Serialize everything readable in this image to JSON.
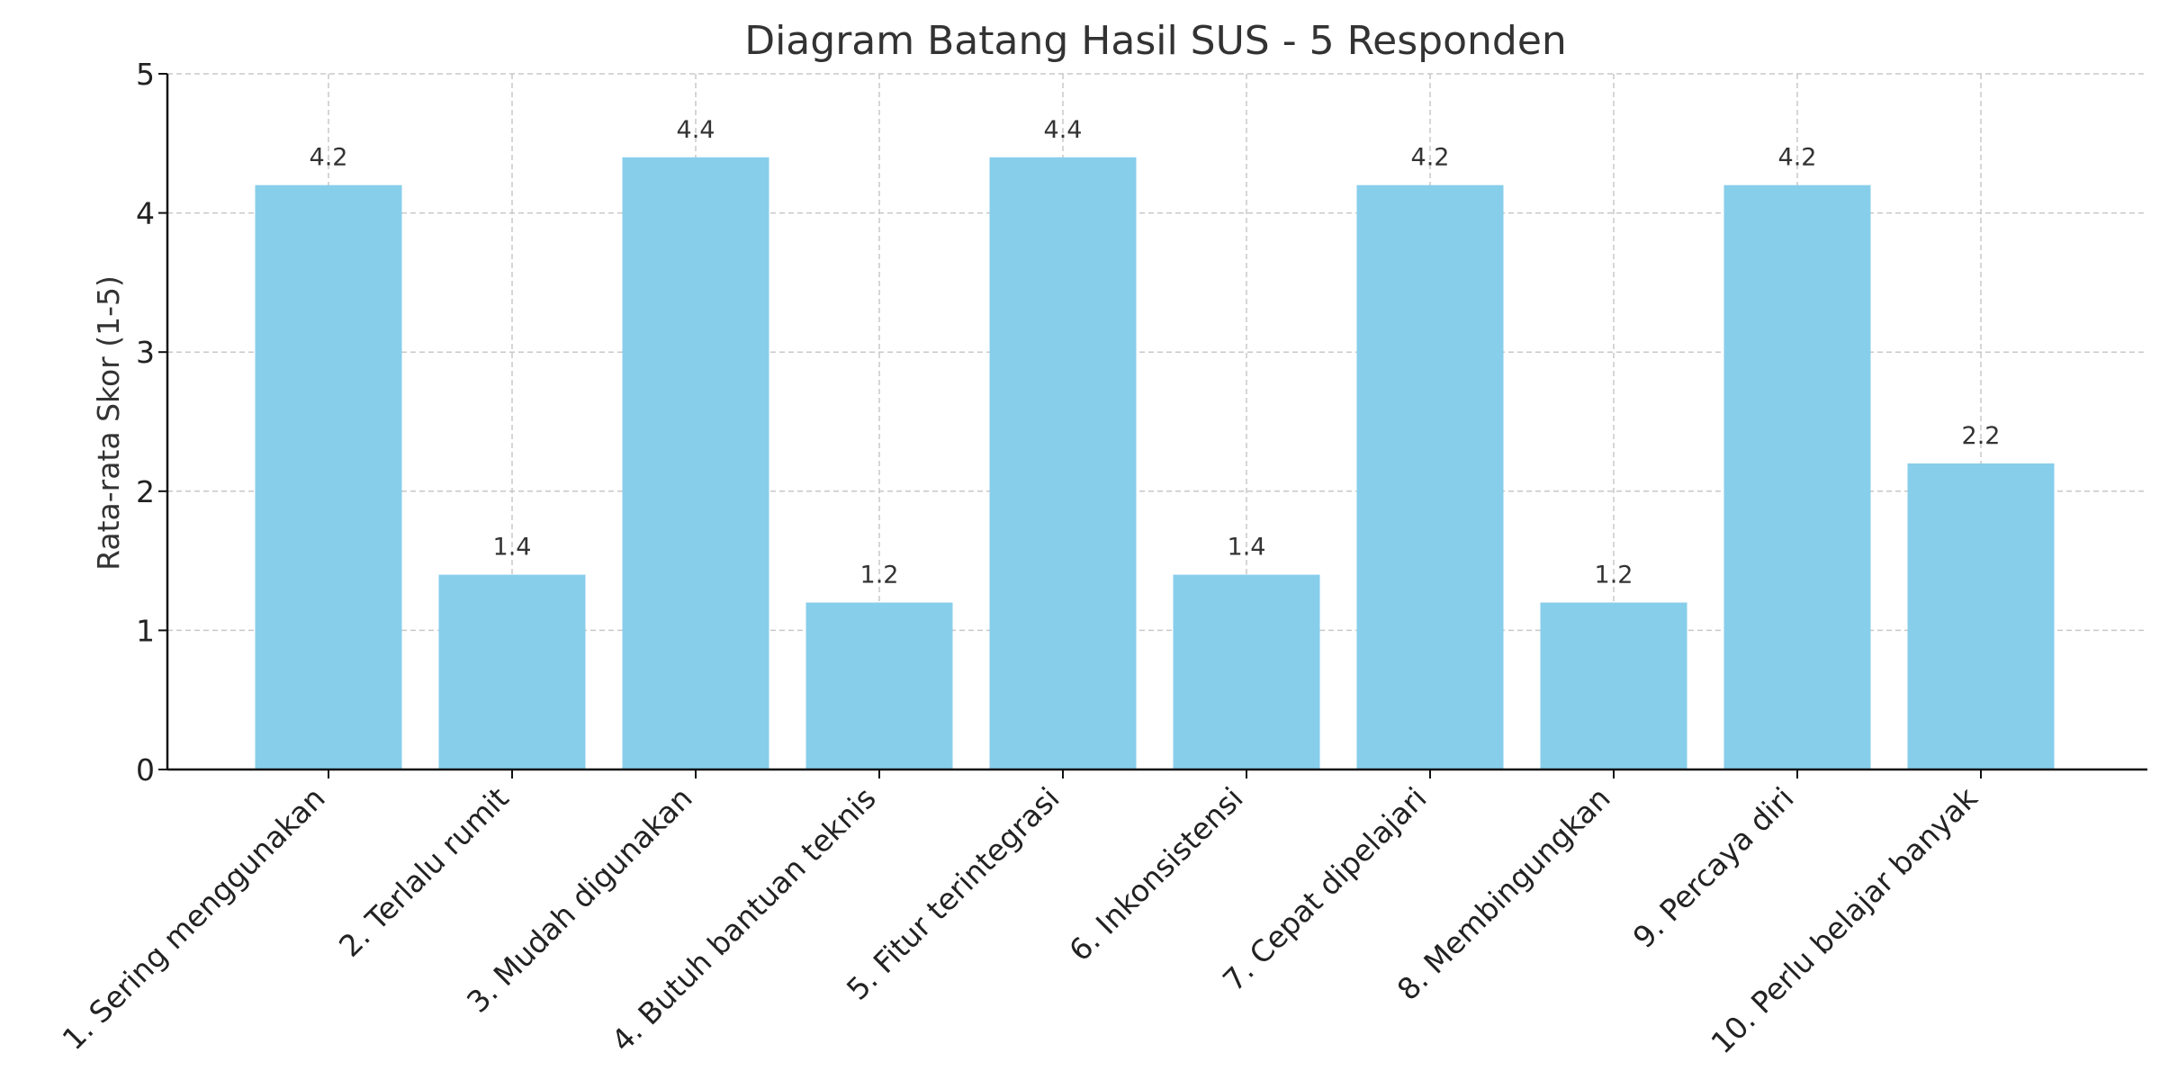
{
  "chart_data": {
    "type": "bar",
    "title": "Diagram Batang Hasil SUS - 5 Responden",
    "xlabel": "",
    "ylabel": "Rata-rata Skor (1-5)",
    "categories": [
      "1. Sering menggunakan",
      "2. Terlalu rumit",
      "3. Mudah digunakan",
      "4. Butuh bantuan teknis",
      "5. Fitur terintegrasi",
      "6. Inkonsistensi",
      "7. Cepat dipelajari",
      "8. Membingungkan",
      "9. Percaya diri",
      "10. Perlu belajar banyak"
    ],
    "values": [
      4.2,
      1.4,
      4.4,
      1.2,
      4.4,
      1.4,
      4.2,
      1.2,
      4.2,
      2.2
    ],
    "value_labels": [
      "4.2",
      "1.4",
      "4.4",
      "1.2",
      "4.4",
      "1.4",
      "4.2",
      "1.2",
      "4.2",
      "2.2"
    ],
    "ylim": [
      0,
      5
    ],
    "yticks": [
      "0",
      "1",
      "2",
      "3",
      "4",
      "5"
    ],
    "grid": true,
    "bar_color": "#87CEEB"
  }
}
